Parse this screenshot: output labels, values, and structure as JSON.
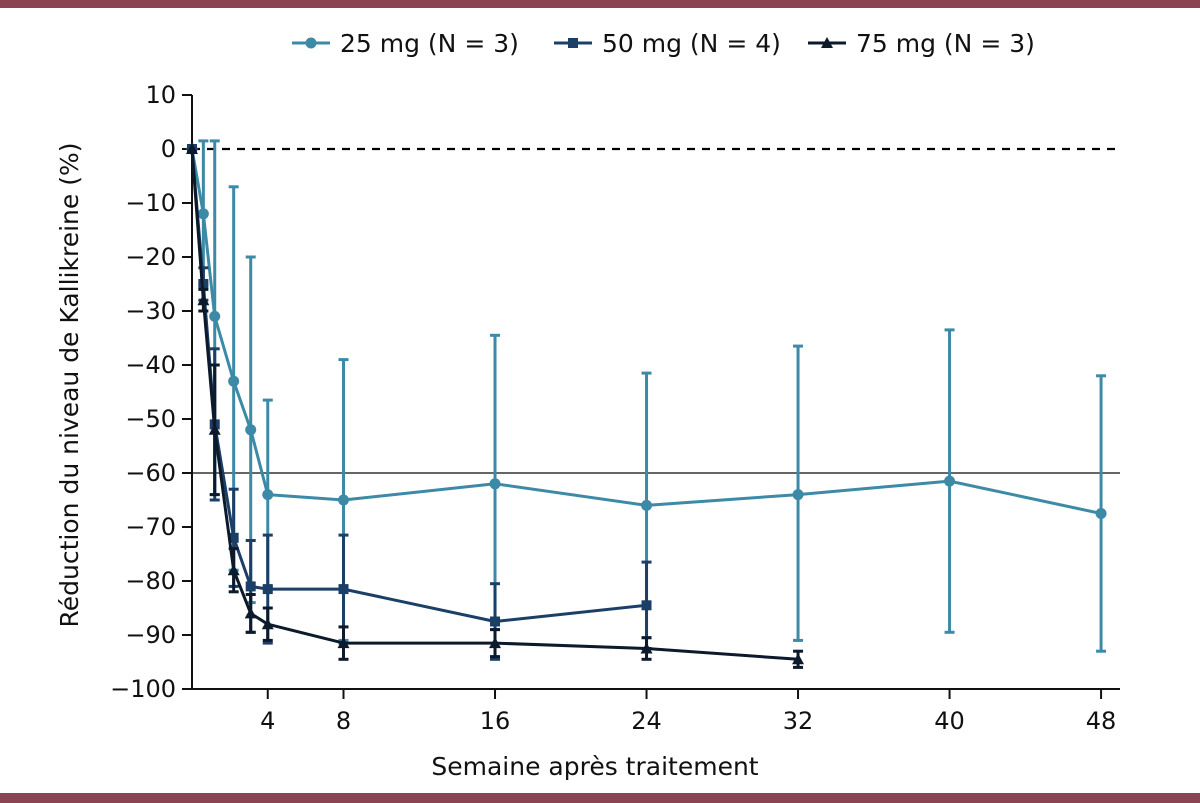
{
  "colors": {
    "frame": "#8b4452",
    "series_25": "#3d8aa6",
    "series_50": "#1b3f66",
    "series_75": "#0d1a2b",
    "threshold": "#666666"
  },
  "chart_data": {
    "type": "line",
    "xlabel": "Semaine après traitement",
    "ylabel": "Réduction du niveau de Kallikreine (%)",
    "xlim": [
      0,
      49
    ],
    "ylim": [
      -100,
      10
    ],
    "x_ticks": [
      4,
      8,
      16,
      24,
      32,
      40,
      48
    ],
    "y_ticks": [
      10,
      0,
      -10,
      -20,
      -30,
      -40,
      -50,
      -60,
      -70,
      -80,
      -90,
      -100
    ],
    "y_tick_labels": [
      "10",
      "0",
      "−10",
      "−20",
      "−30",
      "−40",
      "−50",
      "−60",
      "−70",
      "−80",
      "−90",
      "−100"
    ],
    "reference_lines": [
      {
        "y": 0,
        "style": "dashed"
      },
      {
        "y": -60,
        "style": "solid"
      }
    ],
    "legend_position": "top",
    "series": [
      {
        "name": "25 mg (N = 3)",
        "marker": "circle",
        "x": [
          0,
          0.6,
          1.2,
          2.2,
          3.1,
          4,
          8,
          16,
          24,
          32,
          40,
          48
        ],
        "y": [
          0,
          -12,
          -31,
          -43,
          -52,
          -64,
          -65,
          -62,
          -66,
          -64,
          -61.5,
          -67.5
        ],
        "err_low": [
          0,
          13,
          33,
          35,
          32,
          17,
          26,
          27,
          24.5,
          27,
          28,
          25.5
        ],
        "err_high": [
          0,
          13.5,
          32.5,
          36,
          32,
          17.5,
          26,
          27.5,
          24.5,
          27.5,
          28,
          25.5
        ]
      },
      {
        "name": "50 mg (N = 4)",
        "marker": "square",
        "x": [
          0,
          0.6,
          1.2,
          2.2,
          3.1,
          4,
          8,
          16,
          24
        ],
        "y": [
          0,
          -25,
          -51,
          -72,
          -81,
          -81.5,
          -81.5,
          -87.5,
          -84.5
        ],
        "err_low": [
          0,
          3,
          14,
          9,
          8.5,
          10,
          10,
          7,
          8
        ],
        "err_high": [
          0,
          3,
          14,
          9,
          8.5,
          10,
          10,
          7,
          8
        ]
      },
      {
        "name": "75 mg (N = 3)",
        "marker": "triangle",
        "x": [
          0,
          0.6,
          1.2,
          2.2,
          3.1,
          4,
          8,
          16,
          24,
          32
        ],
        "y": [
          0,
          -28,
          -52,
          -78,
          -86,
          -88,
          -91.5,
          -91.5,
          -92.5,
          -94.5
        ],
        "err_low": [
          0,
          2,
          12,
          4,
          3.5,
          3,
          3,
          2.5,
          2,
          1.5
        ],
        "err_high": [
          0,
          2,
          12,
          4,
          3.5,
          3,
          3,
          2.5,
          2,
          1.5
        ]
      }
    ]
  }
}
